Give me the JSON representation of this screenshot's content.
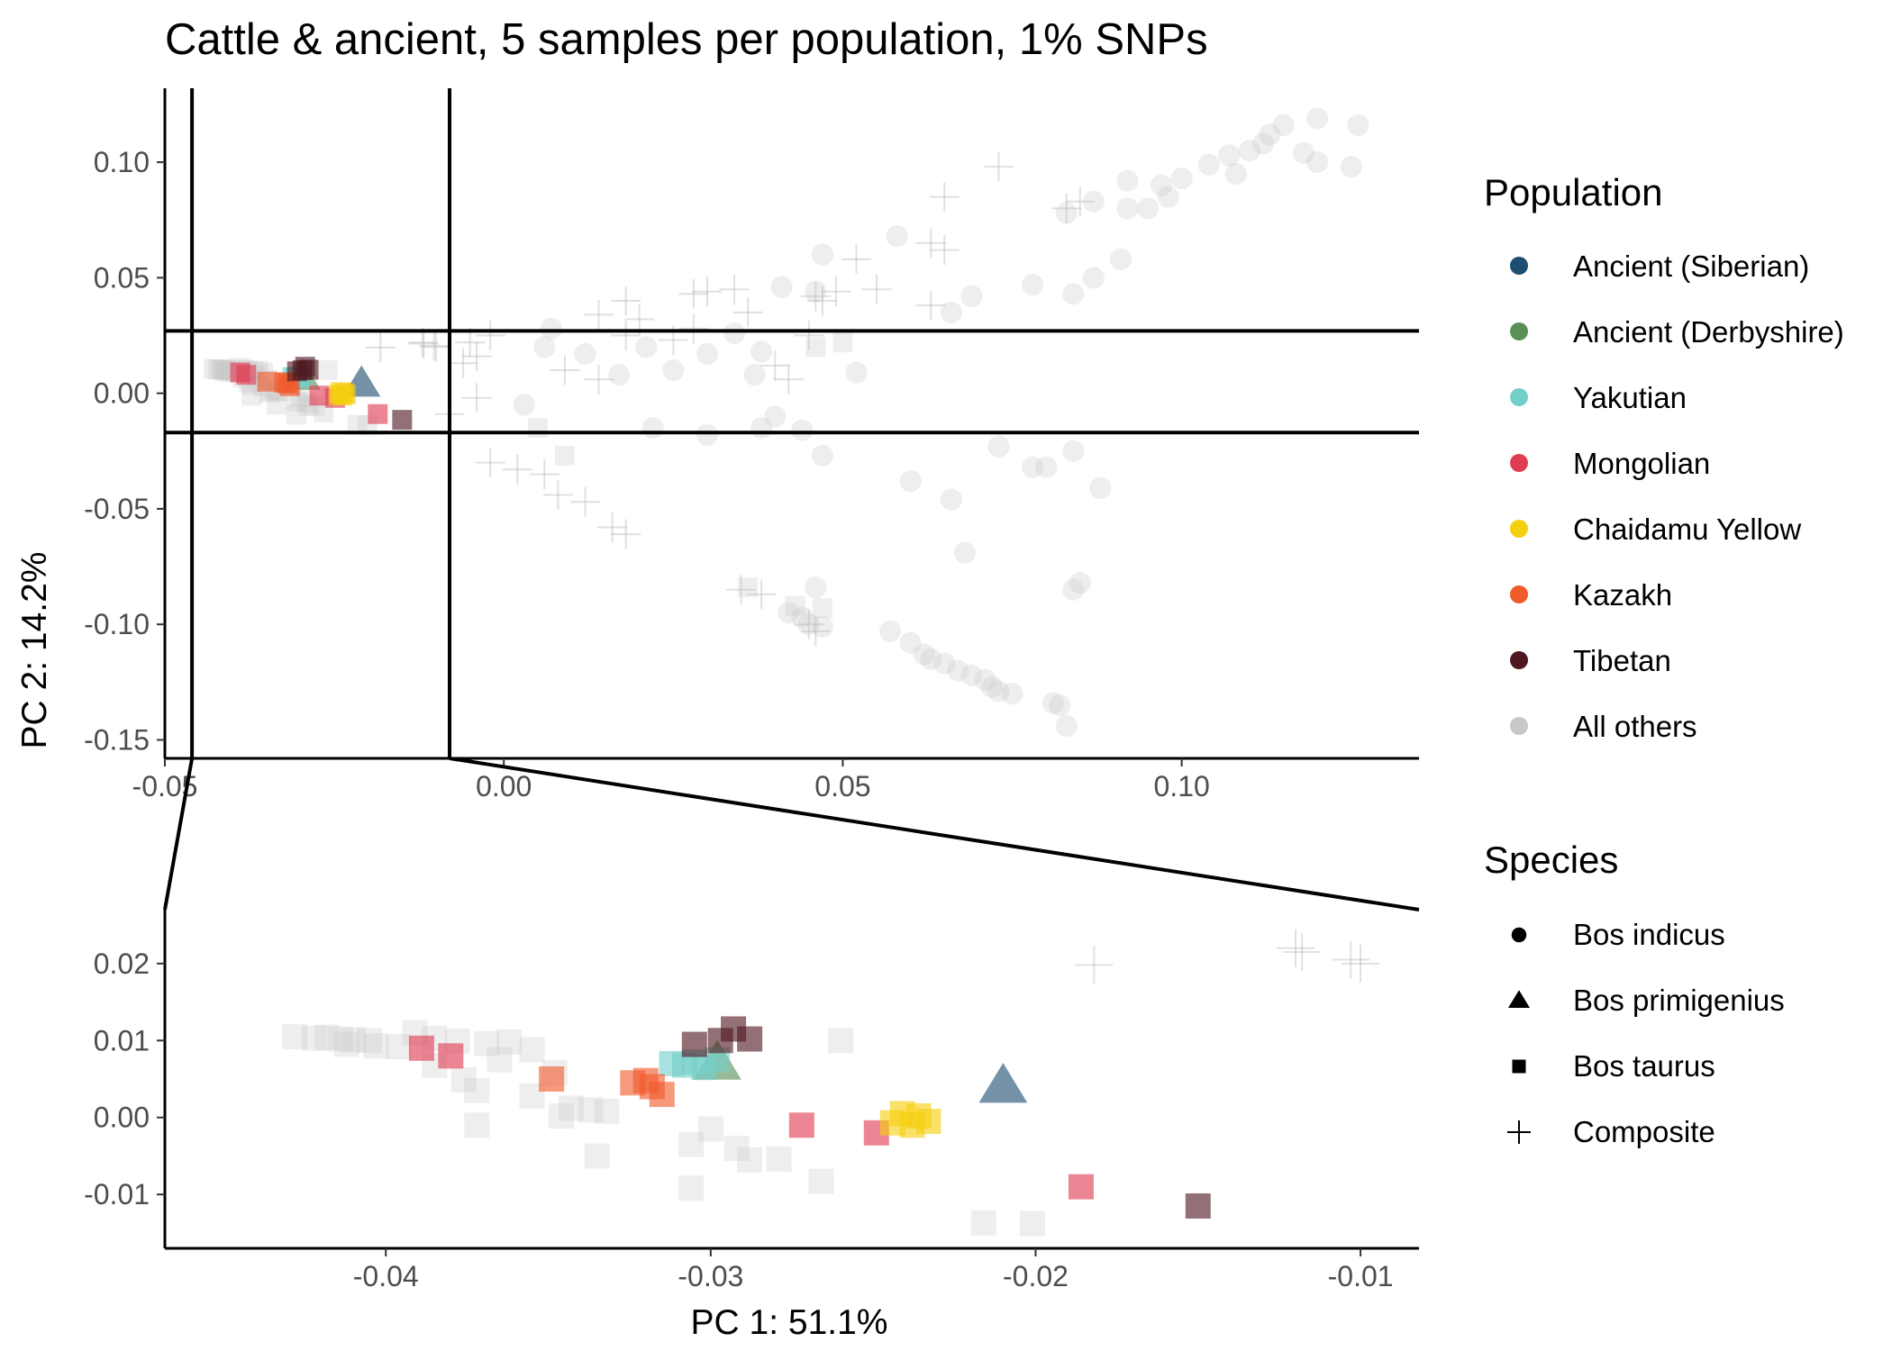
{
  "chart_data": {
    "type": "scatter",
    "title": "Cattle & ancient, 5 samples per population, 1% SNPs",
    "xlabel": "PC 1: 51.1%",
    "ylabel": "PC 2: 14.2%",
    "panels": [
      {
        "name": "main",
        "xlim": [
          -0.05,
          0.135
        ],
        "ylim": [
          -0.158,
          0.132
        ],
        "x_ticks": [
          -0.05,
          0.0,
          0.05,
          0.1
        ],
        "x_tick_labels": [
          "-0.05",
          "0.00",
          "0.05",
          "0.10"
        ],
        "y_ticks": [
          0.1,
          0.05,
          0.0,
          -0.05,
          -0.1,
          -0.15
        ],
        "y_tick_labels": [
          "0.10",
          "0.05",
          "0.00",
          "-0.05",
          "-0.10",
          "-0.15"
        ],
        "zoom_box": {
          "x": [
            -0.046,
            -0.008
          ],
          "y": [
            -0.017,
            0.027
          ]
        }
      },
      {
        "name": "zoom",
        "xlim": [
          -0.0468,
          -0.0082
        ],
        "ylim": [
          -0.017,
          0.027
        ],
        "x_ticks": [
          -0.04,
          -0.03,
          -0.02,
          -0.01
        ],
        "x_tick_labels": [
          "-0.04",
          "-0.03",
          "-0.02",
          "-0.01"
        ],
        "y_ticks": [
          0.02,
          0.01,
          0.0,
          -0.01
        ],
        "y_tick_labels": [
          "0.02",
          "0.01",
          "0.00",
          "-0.01"
        ]
      }
    ],
    "legend": {
      "position": "right",
      "population_title": "Population",
      "populations": [
        {
          "name": "Ancient (Siberian)",
          "color": "#1e4e70"
        },
        {
          "name": "Ancient (Derbyshire)",
          "color": "#5a8f55"
        },
        {
          "name": "Yakutian",
          "color": "#75cfc9"
        },
        {
          "name": "Mongolian",
          "color": "#e03c52"
        },
        {
          "name": "Chaidamu Yellow",
          "color": "#f5ce0f"
        },
        {
          "name": "Kazakh",
          "color": "#f15a2b"
        },
        {
          "name": "Tibetan",
          "color": "#4f1820"
        },
        {
          "name": "All others",
          "color": "#c8c8c8"
        }
      ],
      "species_title": "Species",
      "species": [
        {
          "name": "Bos indicus",
          "shape": "circle"
        },
        {
          "name": "Bos primigenius",
          "shape": "triangle"
        },
        {
          "name": "Bos taurus",
          "shape": "square"
        },
        {
          "name": "Composite",
          "shape": "plus"
        }
      ]
    },
    "highlighted_points": [
      {
        "population": "Ancient (Siberian)",
        "species": "Bos primigenius",
        "x": -0.021,
        "y": 0.004
      },
      {
        "population": "Ancient (Derbyshire)",
        "species": "Bos primigenius",
        "x": -0.0298,
        "y": 0.007
      },
      {
        "population": "Yakutian",
        "species": "Bos taurus",
        "x": -0.0312,
        "y": 0.007
      },
      {
        "population": "Yakutian",
        "species": "Bos taurus",
        "x": -0.0305,
        "y": 0.0072
      },
      {
        "population": "Yakutian",
        "species": "Bos taurus",
        "x": -0.0298,
        "y": 0.0075
      },
      {
        "population": "Yakutian",
        "species": "Bos taurus",
        "x": -0.0308,
        "y": 0.0068
      },
      {
        "population": "Yakutian",
        "species": "Bos taurus",
        "x": -0.0302,
        "y": 0.0065
      },
      {
        "population": "Mongolian",
        "species": "Bos taurus",
        "x": -0.0389,
        "y": 0.009
      },
      {
        "population": "Mongolian",
        "species": "Bos taurus",
        "x": -0.038,
        "y": 0.008
      },
      {
        "population": "Mongolian",
        "species": "Bos taurus",
        "x": -0.0272,
        "y": -0.001
      },
      {
        "population": "Mongolian",
        "species": "Bos taurus",
        "x": -0.0249,
        "y": -0.002
      },
      {
        "population": "Mongolian",
        "species": "Bos taurus",
        "x": -0.0186,
        "y": -0.009
      },
      {
        "population": "Chaidamu Yellow",
        "species": "Bos taurus",
        "x": -0.0241,
        "y": 0.0005
      },
      {
        "population": "Chaidamu Yellow",
        "species": "Bos taurus",
        "x": -0.0233,
        "y": -0.0005
      },
      {
        "population": "Chaidamu Yellow",
        "species": "Bos taurus",
        "x": -0.0238,
        "y": -0.001
      },
      {
        "population": "Chaidamu Yellow",
        "species": "Bos taurus",
        "x": -0.0244,
        "y": -0.0007
      },
      {
        "population": "Chaidamu Yellow",
        "species": "Bos taurus",
        "x": -0.0236,
        "y": 0.0002
      },
      {
        "population": "Kazakh",
        "species": "Bos taurus",
        "x": -0.0349,
        "y": 0.005
      },
      {
        "population": "Kazakh",
        "species": "Bos taurus",
        "x": -0.0324,
        "y": 0.0045
      },
      {
        "population": "Kazakh",
        "species": "Bos taurus",
        "x": -0.0318,
        "y": 0.004
      },
      {
        "population": "Kazakh",
        "species": "Bos taurus",
        "x": -0.032,
        "y": 0.0048
      },
      {
        "population": "Kazakh",
        "species": "Bos taurus",
        "x": -0.0315,
        "y": 0.003
      },
      {
        "population": "Tibetan",
        "species": "Bos taurus",
        "x": -0.0305,
        "y": 0.0095
      },
      {
        "population": "Tibetan",
        "species": "Bos taurus",
        "x": -0.0293,
        "y": 0.0115
      },
      {
        "population": "Tibetan",
        "species": "Bos taurus",
        "x": -0.0288,
        "y": 0.0102
      },
      {
        "population": "Tibetan",
        "species": "Bos taurus",
        "x": -0.0297,
        "y": 0.01
      },
      {
        "population": "Tibetan",
        "species": "Bos taurus",
        "x": -0.015,
        "y": -0.0115
      }
    ],
    "others_indicus": [
      [
        0.126,
        0.116
      ],
      [
        0.12,
        0.119
      ],
      [
        0.115,
        0.116
      ],
      [
        0.112,
        0.108
      ],
      [
        0.11,
        0.105
      ],
      [
        0.107,
        0.103
      ],
      [
        0.104,
        0.099
      ],
      [
        0.1,
        0.093
      ],
      [
        0.097,
        0.09
      ],
      [
        0.092,
        0.092
      ],
      [
        0.087,
        0.083
      ],
      [
        0.083,
        0.078
      ],
      [
        0.098,
        0.085
      ],
      [
        0.12,
        0.1
      ],
      [
        0.125,
        0.098
      ],
      [
        0.118,
        0.104
      ],
      [
        0.113,
        0.112
      ],
      [
        0.108,
        0.095
      ],
      [
        0.095,
        0.08
      ],
      [
        0.092,
        0.08
      ],
      [
        0.091,
        0.058
      ],
      [
        0.087,
        0.05
      ],
      [
        0.084,
        0.043
      ],
      [
        0.078,
        0.047
      ],
      [
        0.069,
        0.042
      ],
      [
        0.066,
        0.035
      ],
      [
        0.058,
        0.068
      ],
      [
        0.047,
        0.06
      ],
      [
        0.041,
        0.046
      ],
      [
        0.034,
        0.026
      ],
      [
        0.021,
        0.02
      ],
      [
        0.012,
        0.017
      ],
      [
        0.007,
        0.028
      ],
      [
        0.006,
        0.02
      ],
      [
        0.017,
        0.008
      ],
      [
        0.025,
        0.01
      ],
      [
        0.03,
        0.017
      ],
      [
        0.038,
        0.018
      ],
      [
        0.037,
        0.008
      ],
      [
        0.052,
        0.009
      ],
      [
        0.046,
        0.044
      ],
      [
        0.003,
        -0.005
      ],
      [
        0.022,
        -0.015
      ],
      [
        0.03,
        -0.018
      ],
      [
        0.038,
        -0.015
      ],
      [
        0.04,
        -0.01
      ],
      [
        0.044,
        -0.016
      ],
      [
        0.047,
        -0.027
      ],
      [
        0.06,
        -0.038
      ],
      [
        0.066,
        -0.046
      ],
      [
        0.073,
        -0.023
      ],
      [
        0.078,
        -0.032
      ],
      [
        0.08,
        -0.032
      ],
      [
        0.084,
        -0.025
      ],
      [
        0.088,
        -0.041
      ],
      [
        0.068,
        -0.069
      ],
      [
        0.084,
        -0.085
      ],
      [
        0.085,
        -0.082
      ],
      [
        0.046,
        -0.084
      ],
      [
        0.042,
        -0.095
      ],
      [
        0.044,
        -0.097
      ],
      [
        0.045,
        -0.1
      ],
      [
        0.047,
        -0.101
      ],
      [
        0.057,
        -0.103
      ],
      [
        0.06,
        -0.108
      ],
      [
        0.062,
        -0.113
      ],
      [
        0.063,
        -0.115
      ],
      [
        0.065,
        -0.117
      ],
      [
        0.067,
        -0.12
      ],
      [
        0.069,
        -0.122
      ],
      [
        0.071,
        -0.124
      ],
      [
        0.072,
        -0.127
      ],
      [
        0.073,
        -0.129
      ],
      [
        0.075,
        -0.13
      ],
      [
        0.081,
        -0.134
      ],
      [
        0.082,
        -0.135
      ],
      [
        0.083,
        -0.144
      ]
    ],
    "others_taurus": [
      [
        -0.0428,
        0.0105
      ],
      [
        -0.0422,
        0.0103
      ],
      [
        -0.0418,
        0.0104
      ],
      [
        -0.0414,
        0.0102
      ],
      [
        -0.041,
        0.0101
      ],
      [
        -0.0405,
        0.01
      ],
      [
        -0.0412,
        0.0095
      ],
      [
        -0.0403,
        0.0093
      ],
      [
        -0.0396,
        0.0092
      ],
      [
        -0.0391,
        0.011
      ],
      [
        -0.0385,
        0.0103
      ],
      [
        -0.0378,
        0.0099
      ],
      [
        -0.0369,
        0.0096
      ],
      [
        -0.0362,
        0.0098
      ],
      [
        -0.0355,
        0.0088
      ],
      [
        -0.0348,
        0.0058
      ],
      [
        -0.0385,
        0.0068
      ],
      [
        -0.0376,
        0.0049
      ],
      [
        -0.0372,
        0.0035
      ],
      [
        -0.0355,
        0.0028
      ],
      [
        -0.0343,
        0.0012
      ],
      [
        -0.0337,
        0.001
      ],
      [
        -0.0332,
        0.0008
      ],
      [
        -0.0346,
        0.0002
      ],
      [
        -0.0372,
        -0.001
      ],
      [
        -0.0335,
        -0.005
      ],
      [
        -0.0306,
        -0.0035
      ],
      [
        -0.0292,
        -0.004
      ],
      [
        -0.0288,
        -0.0055
      ],
      [
        -0.0279,
        -0.0054
      ],
      [
        -0.0266,
        -0.0083
      ],
      [
        -0.0306,
        -0.0092
      ],
      [
        -0.0216,
        -0.0137
      ],
      [
        -0.0201,
        -0.0138
      ],
      [
        -0.03,
        -0.0015
      ],
      [
        -0.0365,
        0.0075
      ],
      [
        -0.026,
        0.01
      ],
      [
        0.005,
        -0.015
      ],
      [
        0.009,
        -0.027
      ],
      [
        0.036,
        -0.084
      ],
      [
        0.043,
        -0.092
      ],
      [
        0.047,
        -0.093
      ],
      [
        0.046,
        0.02
      ],
      [
        0.05,
        0.022
      ]
    ],
    "others_composite": [
      [
        0.073,
        0.098
      ],
      [
        0.065,
        0.085
      ],
      [
        0.065,
        0.062
      ],
      [
        0.063,
        0.065
      ],
      [
        0.052,
        0.058
      ],
      [
        0.055,
        0.045
      ],
      [
        0.049,
        0.044
      ],
      [
        0.047,
        0.04
      ],
      [
        0.046,
        0.042
      ],
      [
        0.034,
        0.045
      ],
      [
        0.03,
        0.044
      ],
      [
        0.028,
        0.043
      ],
      [
        0.018,
        0.04
      ],
      [
        0.014,
        0.034
      ],
      [
        0.02,
        0.032
      ],
      [
        0.018,
        0.025
      ],
      [
        0.036,
        0.035
      ],
      [
        0.045,
        0.025
      ],
      [
        0.04,
        0.012
      ],
      [
        0.028,
        0.028
      ],
      [
        -0.005,
        0.022
      ],
      [
        -0.002,
        0.025
      ],
      [
        -0.006,
        0.013
      ],
      [
        -0.004,
        0.016
      ],
      [
        0.009,
        0.01
      ],
      [
        0.014,
        0.006
      ],
      [
        -0.004,
        -0.002
      ],
      [
        -0.008,
        -0.009
      ],
      [
        -0.002,
        -0.03
      ],
      [
        0.002,
        -0.033
      ],
      [
        0.006,
        -0.035
      ],
      [
        0.008,
        -0.044
      ],
      [
        0.012,
        -0.047
      ],
      [
        0.016,
        -0.058
      ],
      [
        0.018,
        -0.061
      ],
      [
        0.035,
        -0.085
      ],
      [
        0.038,
        -0.087
      ],
      [
        0.045,
        -0.1
      ],
      [
        0.046,
        -0.103
      ],
      [
        0.085,
        0.083
      ],
      [
        0.083,
        0.08
      ],
      [
        -0.012,
        0.022
      ],
      [
        -0.01,
        0.02
      ],
      [
        0.025,
        0.023
      ],
      [
        0.063,
        0.038
      ],
      [
        0.042,
        0.006
      ],
      [
        -0.0118,
        0.0215
      ],
      [
        -0.0103,
        0.0205
      ],
      [
        -0.0182,
        0.0198
      ]
    ]
  }
}
